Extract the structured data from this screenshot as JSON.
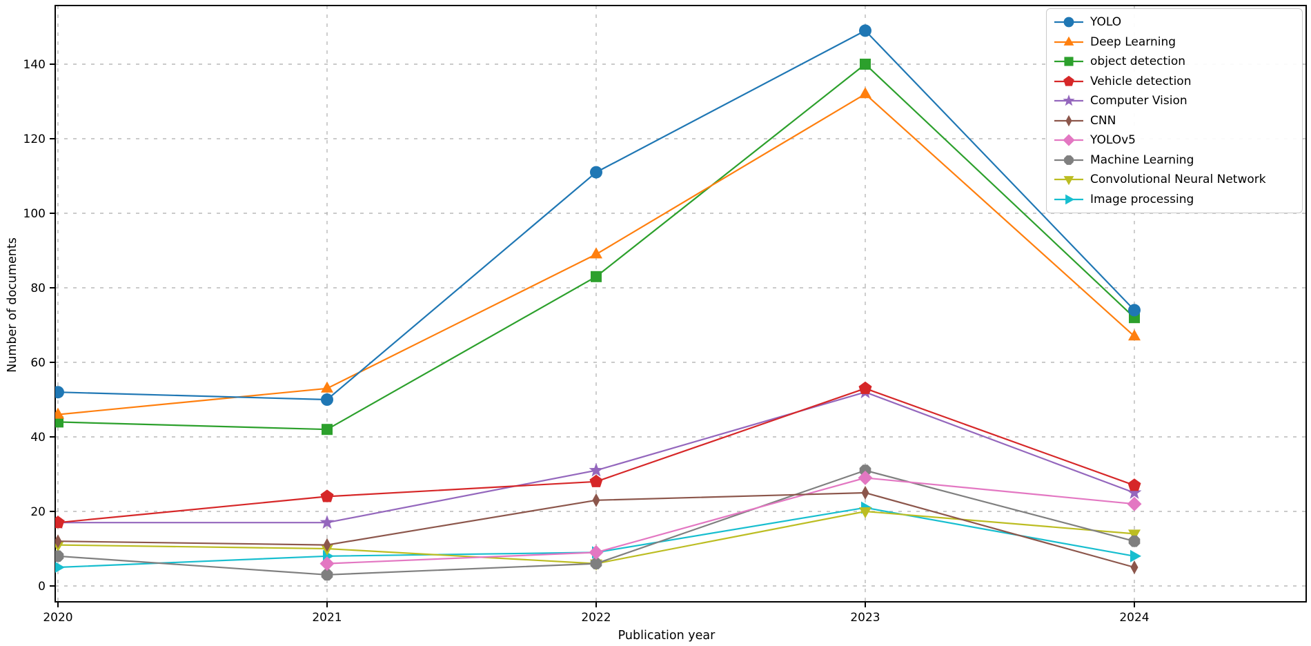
{
  "figure": {
    "title": "",
    "xlabel": "Publication year",
    "ylabel": "Number of documents",
    "x_tick_labels": [
      "2020",
      "2021",
      "2022",
      "2023",
      "2024"
    ],
    "y_tick_labels": [
      "0",
      "20",
      "40",
      "60",
      "80",
      "100",
      "120",
      "140"
    ]
  },
  "chart_data": {
    "type": "line",
    "x": [
      2020,
      2021,
      2022,
      2023,
      2024
    ],
    "xlabel": "Publication year",
    "ylabel": "Number of documents",
    "x_tick_labels": [
      "2020",
      "2021",
      "2022",
      "2023",
      "2024"
    ],
    "y_ticks": [
      0,
      20,
      40,
      60,
      80,
      100,
      120,
      140
    ],
    "ylim": [
      -4,
      156
    ],
    "grid": true,
    "grid_style": "dashed",
    "legend_position": "upper right",
    "background_color": "#ffffff",
    "gridline_color": "#b8b8b8",
    "spine_color": "#000000",
    "series": [
      {
        "name": "YOLO",
        "color": "#1f77b4",
        "marker": "circle",
        "values": [
          52,
          50,
          111,
          149,
          74
        ]
      },
      {
        "name": "Deep Learning",
        "color": "#ff7f0e",
        "marker": "triangle-up",
        "values": [
          46,
          53,
          89,
          132,
          67
        ]
      },
      {
        "name": "object detection",
        "color": "#2ca02c",
        "marker": "square",
        "values": [
          44,
          42,
          83,
          140,
          72
        ]
      },
      {
        "name": "Vehicle detection",
        "color": "#d62728",
        "marker": "pentagon",
        "values": [
          17,
          24,
          28,
          53,
          27
        ]
      },
      {
        "name": "Computer Vision",
        "color": "#9467bd",
        "marker": "star",
        "values": [
          17,
          17,
          31,
          52,
          25
        ]
      },
      {
        "name": "CNN",
        "color": "#8c564b",
        "marker": "thin-diamond",
        "values": [
          12,
          11,
          23,
          25,
          5
        ]
      },
      {
        "name": "YOLOv5",
        "color": "#e377c2",
        "marker": "diamond",
        "values": [
          null,
          6,
          9,
          29,
          22
        ]
      },
      {
        "name": "Machine Learning",
        "color": "#7f7f7f",
        "marker": "octagon",
        "values": [
          8,
          3,
          6,
          31,
          12
        ]
      },
      {
        "name": "Convolutional Neural Network",
        "color": "#bcbd22",
        "marker": "triangle-down",
        "values": [
          11,
          10,
          6,
          20,
          14
        ]
      },
      {
        "name": "Image processing",
        "color": "#17becf",
        "marker": "triangle-right",
        "values": [
          5,
          8,
          9,
          21,
          8
        ]
      }
    ]
  }
}
